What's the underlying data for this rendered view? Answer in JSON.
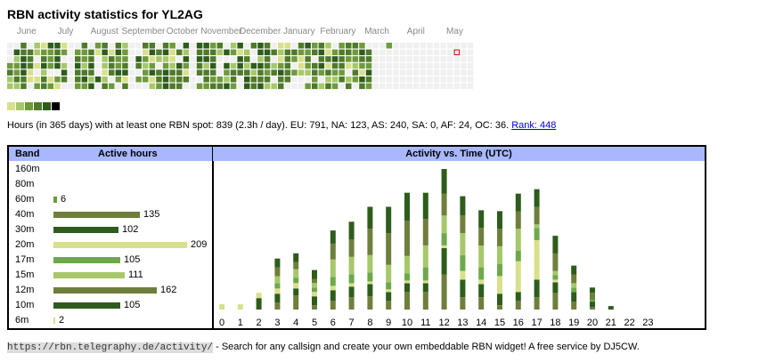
{
  "title": "RBN activity statistics for YL2AG",
  "colors": {
    "levels": [
      "#f0f0f0",
      "#d8e08a",
      "#a6c86a",
      "#6e9a3c",
      "#4f7a2a",
      "#2e5c1c",
      "#000000"
    ],
    "header_bg": "#a8b8ff",
    "today_outline": "#cc0000"
  },
  "heatmap": {
    "months": [
      "June",
      "July",
      "August",
      "September",
      "October",
      "November",
      "December",
      "January",
      "February",
      "March",
      "April",
      "May"
    ],
    "week_levels": [
      [
        0,
        0,
        0,
        3,
        4,
        2,
        2
      ],
      [
        0,
        5,
        2,
        3,
        3,
        4,
        2
      ],
      [
        4,
        4,
        5,
        5,
        5,
        4,
        4
      ],
      [
        0,
        4,
        4,
        4,
        1,
        1,
        0
      ],
      [
        2,
        2,
        0,
        1,
        0,
        1,
        3
      ],
      [
        1,
        3,
        4,
        5,
        2,
        4,
        4
      ],
      [
        5,
        3,
        3,
        3,
        0,
        1,
        3
      ],
      [
        5,
        4,
        5,
        5,
        0,
        3,
        1
      ],
      [
        1,
        3,
        0,
        2,
        5,
        4,
        0
      ],
      [
        0,
        0,
        0,
        0,
        0,
        0,
        0
      ],
      [
        0,
        3,
        4,
        5,
        4,
        4,
        3
      ],
      [
        4,
        3,
        3,
        2,
        4,
        5,
        3
      ],
      [
        0,
        4,
        4,
        5,
        4,
        2,
        5
      ],
      [
        3,
        1,
        0,
        0,
        0,
        5,
        0
      ],
      [
        4,
        5,
        2,
        2,
        1,
        2,
        4
      ],
      [
        0,
        1,
        4,
        4,
        4,
        0,
        3
      ],
      [
        4,
        5,
        3,
        3,
        5,
        3,
        0
      ],
      [
        2,
        3,
        3,
        4,
        5,
        1,
        4
      ],
      [
        0,
        0,
        0,
        0,
        0,
        0,
        0
      ],
      [
        0,
        0,
        5,
        4,
        0,
        3,
        0
      ],
      [
        4,
        1,
        3,
        2,
        3,
        3,
        0
      ],
      [
        4,
        5,
        1,
        3,
        5,
        1,
        2
      ],
      [
        0,
        4,
        2,
        0,
        4,
        4,
        3
      ],
      [
        4,
        5,
        2,
        3,
        5,
        5,
        5
      ],
      [
        3,
        1,
        1,
        2,
        4,
        3,
        4
      ],
      [
        0,
        4,
        0,
        5,
        4,
        4,
        4
      ],
      [
        5,
        2,
        5,
        3,
        1,
        4,
        0
      ],
      [
        0,
        0,
        0,
        0,
        0,
        0,
        0
      ],
      [
        5,
        4,
        5,
        4,
        4,
        0,
        3
      ],
      [
        5,
        4,
        5,
        2,
        4,
        4,
        3
      ],
      [
        3,
        4,
        4,
        5,
        4,
        3,
        4
      ],
      [
        4,
        2,
        0,
        0,
        0,
        3,
        4
      ],
      [
        0,
        5,
        0,
        5,
        3,
        2,
        5
      ],
      [
        2,
        3,
        0,
        2,
        4,
        4,
        3
      ],
      [
        5,
        1,
        5,
        5,
        4,
        0,
        0
      ],
      [
        0,
        2,
        4,
        2,
        4,
        5,
        5
      ],
      [
        4,
        0,
        0,
        5,
        2,
        4,
        4
      ],
      [
        5,
        5,
        2,
        5,
        4,
        4,
        5
      ],
      [
        4,
        5,
        4,
        4,
        3,
        4,
        2
      ],
      [
        0,
        4,
        0,
        2,
        4,
        0,
        2
      ],
      [
        1,
        2,
        1,
        3,
        5,
        4,
        4
      ],
      [
        1,
        4,
        4,
        4,
        4,
        4,
        0
      ],
      [
        0,
        4,
        3,
        0,
        3,
        0,
        0
      ],
      [
        4,
        3,
        1,
        1,
        2,
        0,
        0
      ],
      [
        5,
        3,
        4,
        3,
        2,
        0,
        3
      ],
      [
        3,
        4,
        0,
        4,
        4,
        3,
        4
      ],
      [
        4,
        5,
        4,
        5,
        3,
        0,
        2
      ],
      [
        2,
        1,
        4,
        1,
        4,
        2,
        4
      ],
      [
        0,
        3,
        5,
        4,
        3,
        2,
        3
      ],
      [
        3,
        4,
        4,
        4,
        3,
        4,
        0
      ],
      [
        4,
        4,
        3,
        1,
        0,
        2,
        4
      ],
      [
        4,
        3,
        3,
        2,
        4,
        3,
        0
      ],
      [
        3,
        5,
        4,
        3,
        1,
        5,
        4
      ],
      [
        0,
        4,
        4,
        3,
        5,
        4,
        3
      ],
      [
        0,
        0,
        0,
        0,
        0,
        0,
        0
      ],
      [
        0,
        0,
        0,
        0,
        0,
        0,
        0
      ],
      [
        3,
        0,
        0,
        0,
        0,
        0,
        0
      ],
      [
        0,
        0,
        0,
        0,
        0,
        0,
        0
      ],
      [
        0,
        0,
        0,
        0,
        0,
        0,
        0
      ],
      [
        0,
        0,
        0,
        0,
        0,
        0,
        0
      ],
      [
        0,
        0,
        0,
        0,
        0,
        0,
        0
      ],
      [
        0,
        0,
        0,
        0,
        0,
        0,
        0
      ],
      [
        0,
        0,
        0,
        0,
        0,
        0,
        0
      ],
      [
        0,
        0,
        0,
        0,
        0,
        0,
        0
      ],
      [
        0,
        0,
        0,
        0,
        0,
        0,
        0
      ],
      [
        0,
        0,
        0,
        0,
        0,
        0,
        0
      ],
      [
        0,
        0,
        0,
        0,
        0,
        0,
        0
      ],
      [
        0,
        0,
        0,
        0,
        0,
        0,
        0
      ],
      [
        0,
        0,
        0,
        0,
        0,
        0,
        0
      ]
    ],
    "week_max_row": [
      6,
      6,
      6,
      6,
      6,
      6,
      6,
      6,
      6,
      6,
      6,
      6,
      6,
      6,
      6,
      6,
      6,
      6,
      6,
      6,
      6,
      6,
      6,
      6,
      6,
      6,
      6,
      6,
      6,
      6,
      6,
      6,
      6,
      6,
      6,
      6,
      6,
      6,
      6,
      6,
      6,
      6,
      6,
      6,
      6,
      6,
      6,
      6,
      6,
      6,
      6,
      6,
      6,
      6,
      6,
      6,
      6,
      6,
      6,
      6,
      6,
      6,
      6,
      6,
      6,
      6,
      6,
      6,
      6
    ],
    "today": {
      "week": 66,
      "day": 1
    }
  },
  "summary": {
    "text": "Hours (in 365 days) with at least one RBN spot: 839 (2.3h / day). EU: 791, NA: 123, AS: 240, SA: 0, AF: 24, OC: 36. ",
    "rank_label": "Rank: 448"
  },
  "bands_table": {
    "header_band": "Band",
    "header_hours": "Active hours",
    "rows": [
      {
        "band": "160m",
        "hours": null,
        "color": ""
      },
      {
        "band": "80m",
        "hours": null,
        "color": ""
      },
      {
        "band": "60m",
        "hours": 6,
        "color": "#6e9a3c"
      },
      {
        "band": "40m",
        "hours": 135,
        "color": "#6e7f3c"
      },
      {
        "band": "30m",
        "hours": 102,
        "color": "#2e5c1c"
      },
      {
        "band": "20m",
        "hours": 209,
        "color": "#d8e08a"
      },
      {
        "band": "17m",
        "hours": 105,
        "color": "#6ea84c"
      },
      {
        "band": "15m",
        "hours": 111,
        "color": "#a6c86a"
      },
      {
        "band": "12m",
        "hours": 162,
        "color": "#6e7f3c"
      },
      {
        "band": "10m",
        "hours": 105,
        "color": "#2e5c1c"
      },
      {
        "band": "6m",
        "hours": 2,
        "color": "#d8e08a"
      }
    ]
  },
  "chart_data": {
    "type": "bar",
    "title": "Activity vs. Time (UTC)",
    "stacked": true,
    "categories": [
      "0",
      "1",
      "2",
      "3",
      "4",
      "5",
      "6",
      "7",
      "8",
      "9",
      "10",
      "11",
      "12",
      "13",
      "14",
      "15",
      "16",
      "17",
      "18",
      "19",
      "20",
      "21",
      "22",
      "23"
    ],
    "series": [
      {
        "name": "40m",
        "color": "#6e7f3c",
        "values": [
          0,
          0,
          0,
          8,
          16,
          5,
          10,
          14,
          15,
          10,
          20,
          20,
          40,
          14,
          14,
          5,
          10,
          14,
          19,
          9,
          3,
          0,
          0,
          0
        ]
      },
      {
        "name": "30m",
        "color": "#2e5c1c",
        "values": [
          0,
          0,
          13,
          10,
          8,
          10,
          12,
          12,
          14,
          10,
          10,
          10,
          30,
          20,
          15,
          13,
          10,
          20,
          12,
          11,
          6,
          0,
          0,
          0
        ]
      },
      {
        "name": "20m",
        "color": "#d8e08a",
        "values": [
          6,
          6,
          6,
          6,
          6,
          5,
          5,
          4,
          3,
          3,
          3,
          3,
          3,
          10,
          5,
          20,
          35,
          45,
          3,
          0,
          0,
          0,
          0,
          0
        ]
      },
      {
        "name": "17m",
        "color": "#6ea84c",
        "values": [
          0,
          0,
          0,
          6,
          6,
          5,
          10,
          10,
          10,
          8,
          8,
          15,
          14,
          18,
          14,
          14,
          12,
          14,
          5,
          5,
          2,
          0,
          0,
          0
        ]
      },
      {
        "name": "15m",
        "color": "#a6c86a",
        "values": [
          0,
          0,
          0,
          8,
          10,
          5,
          20,
          20,
          20,
          20,
          20,
          25,
          20,
          25,
          25,
          20,
          25,
          4,
          5,
          5,
          0,
          0,
          0,
          0
        ]
      },
      {
        "name": "12m",
        "color": "#6e7f3c",
        "values": [
          0,
          0,
          0,
          10,
          8,
          5,
          18,
          20,
          30,
          36,
          40,
          30,
          25,
          20,
          20,
          20,
          20,
          20,
          20,
          10,
          8,
          0,
          0,
          0
        ]
      },
      {
        "name": "10m",
        "color": "#2e5c1c",
        "values": [
          0,
          0,
          0,
          10,
          10,
          10,
          15,
          20,
          25,
          30,
          32,
          30,
          28,
          22,
          20,
          20,
          20,
          20,
          20,
          10,
          6,
          4,
          0,
          0
        ]
      }
    ]
  },
  "footer": {
    "url": "https://rbn.telegraphy.de/activity/",
    "text": " - Search for any callsign and create your own embeddable RBN widget! A free service by DJ5CW."
  }
}
